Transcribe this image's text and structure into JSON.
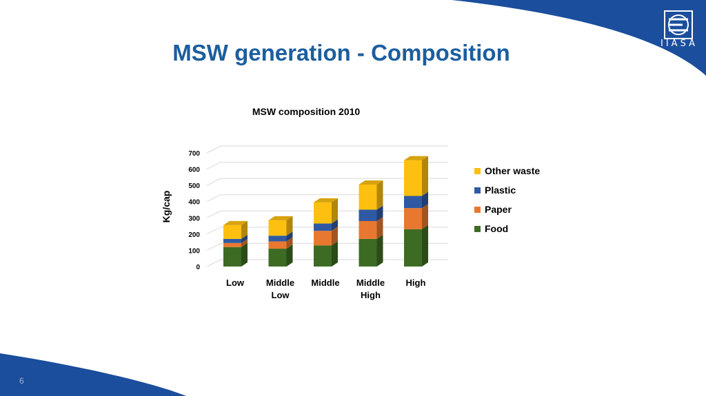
{
  "slide": {
    "title": "MSW generation - Composition",
    "page_number": "6",
    "logo_text": "IIASA"
  },
  "colors": {
    "brand_blue": "#1b4e9c",
    "title_blue": "#1b5e9e"
  },
  "chart_data": {
    "type": "bar",
    "stacked": true,
    "three_d": true,
    "title": "MSW composition 2010",
    "ylabel": "Kg/cap",
    "xlabel": "",
    "ylim": [
      0,
      700
    ],
    "yticks": [
      "0",
      "100",
      "200",
      "300",
      "400",
      "500",
      "600",
      "700"
    ],
    "categories": [
      [
        "Low"
      ],
      [
        "Middle",
        "Low"
      ],
      [
        "Middle"
      ],
      [
        "Middle",
        "High"
      ],
      [
        "High"
      ]
    ],
    "grid": true,
    "legend_position": "right",
    "series": [
      {
        "name": "Food",
        "color": "#3d6b24",
        "values": [
          120,
          110,
          130,
          170,
          230
        ]
      },
      {
        "name": "Paper",
        "color": "#e8782f",
        "values": [
          25,
          45,
          90,
          110,
          130
        ]
      },
      {
        "name": "Plastic",
        "color": "#2f5aa3",
        "values": [
          25,
          35,
          45,
          70,
          75
        ]
      },
      {
        "name": "Other waste",
        "color": "#fdc010",
        "values": [
          85,
          95,
          130,
          155,
          220
        ]
      }
    ]
  }
}
